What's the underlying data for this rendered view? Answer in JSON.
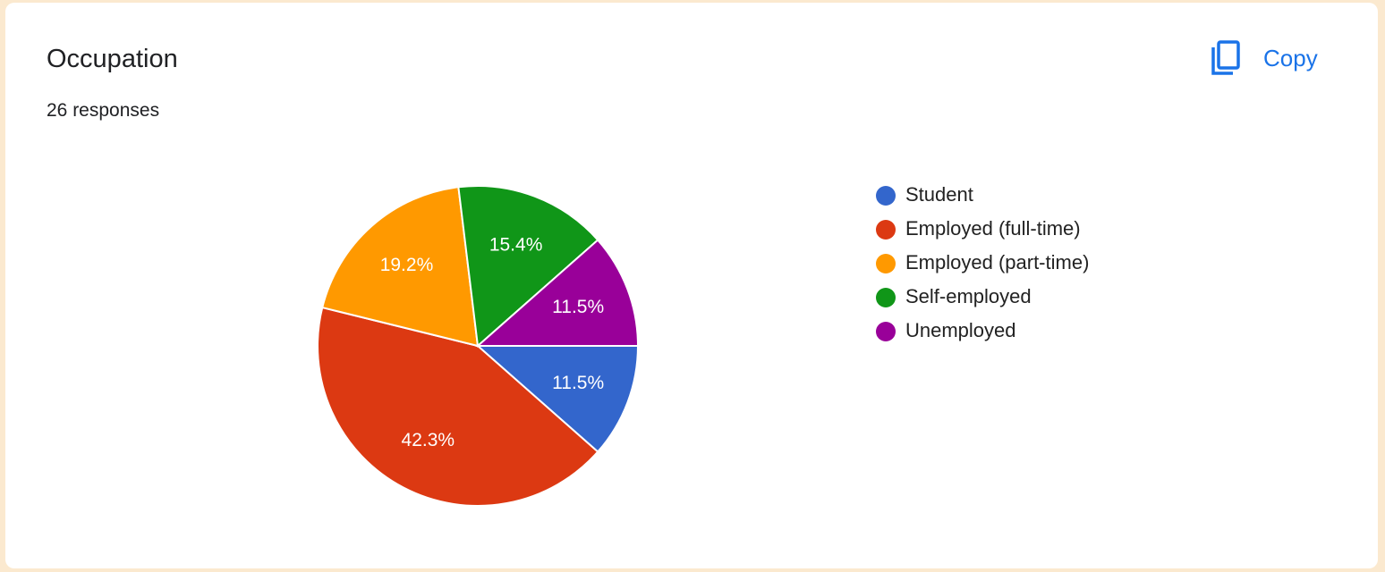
{
  "toolbar": {
    "copy": "Copy"
  },
  "chart_data": {
    "type": "pie",
    "title": "Occupation",
    "subtitle": "26 responses",
    "categories": [
      "Student",
      "Employed (full-time)",
      "Employed (part-time)",
      "Self-employed",
      "Unemployed"
    ],
    "values": [
      11.5,
      42.3,
      19.2,
      15.4,
      11.5
    ],
    "value_labels": [
      "11.5%",
      "42.3%",
      "19.2%",
      "15.4%",
      "11.5%"
    ],
    "colors": [
      "#3366cc",
      "#dc3912",
      "#ff9900",
      "#109618",
      "#990099"
    ],
    "legend": "right"
  }
}
